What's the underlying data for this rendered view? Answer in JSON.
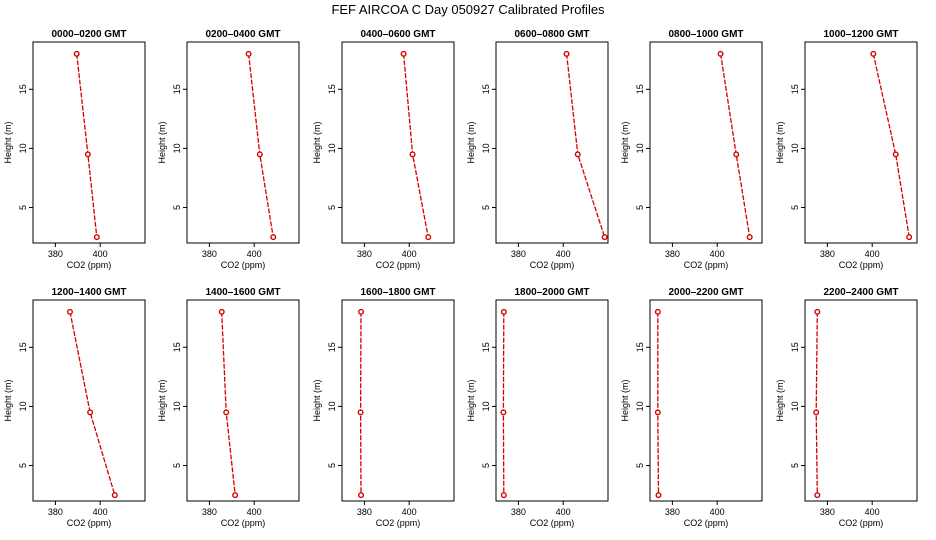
{
  "figure": {
    "title": "FEF AIRCOA C  Day 050927  Calibrated Profiles"
  },
  "chart_data": [
    {
      "type": "line",
      "title": "0000–0200 GMT",
      "xlabel": "CO2 (ppm)",
      "ylabel": "Height (m)",
      "xlim": [
        370,
        420
      ],
      "ylim": [
        2,
        19
      ],
      "xticks": [
        380,
        400
      ],
      "yticks": [
        5,
        10,
        15
      ],
      "grid": false,
      "series": [
        {
          "x": [
            389.5,
            394.5,
            398.5
          ],
          "y": [
            18,
            9.5,
            2.5
          ]
        }
      ]
    },
    {
      "type": "line",
      "title": "0200–0400 GMT",
      "xlabel": "CO2 (ppm)",
      "ylabel": "Height (m)",
      "xlim": [
        370,
        420
      ],
      "ylim": [
        2,
        19
      ],
      "xticks": [
        380,
        400
      ],
      "yticks": [
        5,
        10,
        15
      ],
      "grid": false,
      "series": [
        {
          "x": [
            397.5,
            402.5,
            408.5
          ],
          "y": [
            18,
            9.5,
            2.5
          ]
        }
      ]
    },
    {
      "type": "line",
      "title": "0400–0600 GMT",
      "xlabel": "CO2 (ppm)",
      "ylabel": "Height (m)",
      "xlim": [
        370,
        420
      ],
      "ylim": [
        2,
        19
      ],
      "xticks": [
        380,
        400
      ],
      "yticks": [
        5,
        10,
        15
      ],
      "grid": false,
      "series": [
        {
          "x": [
            397.5,
            401.5,
            408.5
          ],
          "y": [
            18,
            9.5,
            2.5
          ]
        }
      ]
    },
    {
      "type": "line",
      "title": "0600–0800 GMT",
      "xlabel": "CO2 (ppm)",
      "ylabel": "Height (m)",
      "xlim": [
        370,
        420
      ],
      "ylim": [
        2,
        19
      ],
      "xticks": [
        380,
        400
      ],
      "yticks": [
        5,
        10,
        15
      ],
      "grid": false,
      "series": [
        {
          "x": [
            401.5,
            406.5,
            418.5
          ],
          "y": [
            18,
            9.5,
            2.5
          ]
        }
      ]
    },
    {
      "type": "line",
      "title": "0800–1000 GMT",
      "xlabel": "CO2 (ppm)",
      "ylabel": "Height (m)",
      "xlim": [
        370,
        420
      ],
      "ylim": [
        2,
        19
      ],
      "xticks": [
        380,
        400
      ],
      "yticks": [
        5,
        10,
        15
      ],
      "grid": false,
      "series": [
        {
          "x": [
            401.5,
            408.5,
            414.5
          ],
          "y": [
            18,
            9.5,
            2.5
          ]
        }
      ]
    },
    {
      "type": "line",
      "title": "1000–1200 GMT",
      "xlabel": "CO2 (ppm)",
      "ylabel": "Height (m)",
      "xlim": [
        370,
        420
      ],
      "ylim": [
        2,
        19
      ],
      "xticks": [
        380,
        400
      ],
      "yticks": [
        5,
        10,
        15
      ],
      "grid": false,
      "series": [
        {
          "x": [
            400.5,
            410.5,
            416.5
          ],
          "y": [
            18,
            9.5,
            2.5
          ]
        }
      ]
    },
    {
      "type": "line",
      "title": "1200–1400 GMT",
      "xlabel": "CO2 (ppm)",
      "ylabel": "Height (m)",
      "xlim": [
        370,
        420
      ],
      "ylim": [
        2,
        19
      ],
      "xticks": [
        380,
        400
      ],
      "yticks": [
        5,
        10,
        15
      ],
      "grid": false,
      "series": [
        {
          "x": [
            386.5,
            395.5,
            406.5
          ],
          "y": [
            18,
            9.5,
            2.5
          ]
        }
      ]
    },
    {
      "type": "line",
      "title": "1400–1600 GMT",
      "xlabel": "CO2 (ppm)",
      "ylabel": "Height (m)",
      "xlim": [
        370,
        420
      ],
      "ylim": [
        2,
        19
      ],
      "xticks": [
        380,
        400
      ],
      "yticks": [
        5,
        10,
        15
      ],
      "grid": false,
      "series": [
        {
          "x": [
            385.5,
            387.5,
            391.5
          ],
          "y": [
            18,
            9.5,
            2.5
          ]
        }
      ]
    },
    {
      "type": "line",
      "title": "1600–1800 GMT",
      "xlabel": "CO2 (ppm)",
      "ylabel": "Height (m)",
      "xlim": [
        370,
        420
      ],
      "ylim": [
        2,
        19
      ],
      "xticks": [
        380,
        400
      ],
      "yticks": [
        5,
        10,
        15
      ],
      "grid": false,
      "series": [
        {
          "x": [
            378.5,
            378.3,
            378.5
          ],
          "y": [
            18,
            9.5,
            2.5
          ]
        }
      ]
    },
    {
      "type": "line",
      "title": "1800–2000 GMT",
      "xlabel": "CO2 (ppm)",
      "ylabel": "Height (m)",
      "xlim": [
        370,
        420
      ],
      "ylim": [
        2,
        19
      ],
      "xticks": [
        380,
        400
      ],
      "yticks": [
        5,
        10,
        15
      ],
      "grid": false,
      "series": [
        {
          "x": [
            373.5,
            373.3,
            373.5
          ],
          "y": [
            18,
            9.5,
            2.5
          ]
        }
      ]
    },
    {
      "type": "line",
      "title": "2000–2200 GMT",
      "xlabel": "CO2 (ppm)",
      "ylabel": "Height (m)",
      "xlim": [
        370,
        420
      ],
      "ylim": [
        2,
        19
      ],
      "xticks": [
        380,
        400
      ],
      "yticks": [
        5,
        10,
        15
      ],
      "grid": false,
      "series": [
        {
          "x": [
            373.5,
            373.5,
            373.8
          ],
          "y": [
            18,
            9.5,
            2.5
          ]
        }
      ]
    },
    {
      "type": "line",
      "title": "2200–2400 GMT",
      "xlabel": "CO2 (ppm)",
      "ylabel": "Height (m)",
      "xlim": [
        370,
        420
      ],
      "ylim": [
        2,
        19
      ],
      "xticks": [
        380,
        400
      ],
      "yticks": [
        5,
        10,
        15
      ],
      "grid": false,
      "series": [
        {
          "x": [
            375.5,
            375.0,
            375.5
          ],
          "y": [
            18,
            9.5,
            2.5
          ]
        }
      ]
    }
  ]
}
